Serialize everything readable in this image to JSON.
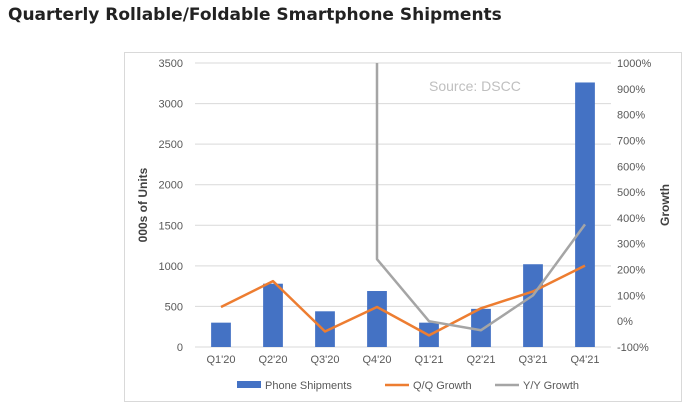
{
  "page": {
    "title": "Quarterly Rollable/Foldable Smartphone Shipments"
  },
  "colors": {
    "bars": "#4472c4",
    "qq": "#ed7d31",
    "yy": "#a5a5a5",
    "grid": "#d9d9d9"
  },
  "chart_data": {
    "type": "bar",
    "title": "",
    "annotation": "Source: DSCC",
    "categories": [
      "Q1'20",
      "Q2'20",
      "Q3'20",
      "Q4'20",
      "Q1'21",
      "Q2'21",
      "Q3'21",
      "Q4'21"
    ],
    "y_left": {
      "label": "000s of Units",
      "min": 0,
      "max": 3500,
      "ticks": [
        0,
        500,
        1000,
        1500,
        2000,
        2500,
        3000,
        3500
      ],
      "tick_labels": [
        "0",
        "500",
        "1000",
        "1500",
        "2000",
        "2500",
        "3000",
        "3500"
      ]
    },
    "y_right": {
      "label": "Growth",
      "min": -100,
      "max": 1000,
      "ticks": [
        -100,
        0,
        100,
        200,
        300,
        400,
        500,
        600,
        700,
        800,
        900,
        1000
      ],
      "tick_labels": [
        "-100%",
        "0%",
        "100%",
        "200%",
        "300%",
        "400%",
        "500%",
        "600%",
        "700%",
        "800%",
        "900%",
        "1000%"
      ]
    },
    "grid": true,
    "legend_position": "bottom",
    "series": [
      {
        "name": "Phone Shipments",
        "type": "bar",
        "axis": "left",
        "values": [
          300,
          780,
          440,
          690,
          300,
          470,
          1020,
          3260
        ]
      },
      {
        "name": "Q/Q Growth",
        "type": "line",
        "axis": "right",
        "values": [
          55,
          155,
          -40,
          55,
          -55,
          50,
          115,
          215
        ]
      },
      {
        "name": "Y/Y Growth",
        "type": "line",
        "axis": "right",
        "values": [
          null,
          null,
          null,
          240,
          0,
          -35,
          100,
          375
        ],
        "above_max_at": 3
      }
    ]
  }
}
